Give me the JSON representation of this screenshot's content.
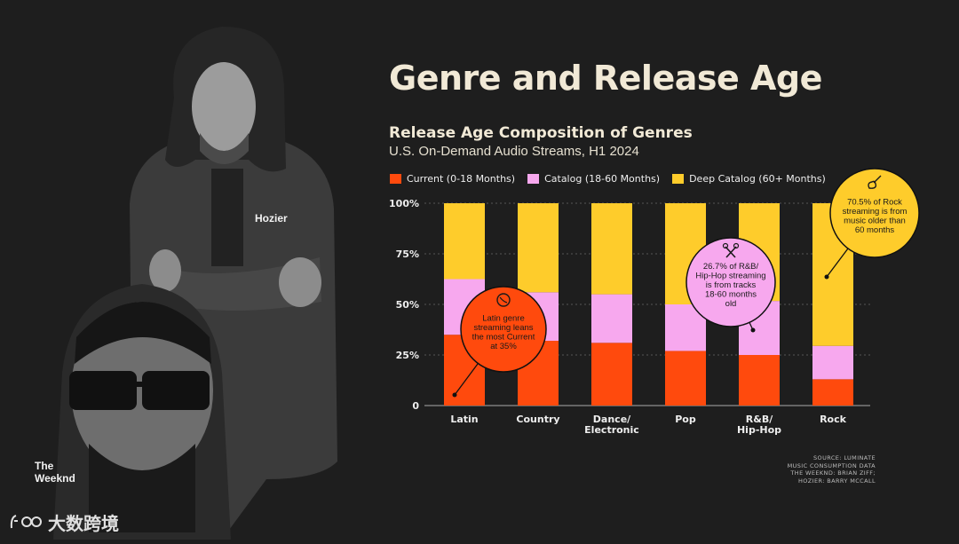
{
  "page": {
    "title": "Genre and Release Age"
  },
  "photos": {
    "hozier_label": "Hozier",
    "weeknd_label_line1": "The",
    "weeknd_label_line2": "Weeknd"
  },
  "watermark": {
    "text": "大数跨境"
  },
  "source": {
    "line1": "SOURCE: LUMINATE",
    "line2": "MUSIC CONSUMPTION DATA",
    "line3": "THE WEEKND: BRIAN ZIFF;",
    "line4": "HOZIER: BARRY MCCALL"
  },
  "colors": {
    "current": "#ff4a0d",
    "catalog": "#f7a8ee",
    "deep_catalog": "#fecc2b",
    "background": "#1e1e1e",
    "title": "#f1e9d6"
  },
  "chart_data": {
    "type": "bar",
    "stacked": true,
    "title": "Release Age Composition of Genres",
    "subtitle": "U.S. On-Demand Audio Streams, H1 2024",
    "categories": [
      "Latin",
      "Country",
      "Dance/\nElectronic",
      "Pop",
      "R&B/\nHip-Hop",
      "Rock"
    ],
    "series": [
      {
        "name": "Current (0-18 Months)",
        "color": "#ff4a0d",
        "values": [
          35,
          32,
          31,
          27,
          25,
          13
        ]
      },
      {
        "name": "Catalog (18-60 Months)",
        "color": "#f7a8ee",
        "values": [
          27.5,
          24,
          24,
          23,
          26.7,
          16.5
        ]
      },
      {
        "name": "Deep Catalog (60+ Months)",
        "color": "#fecc2b",
        "values": [
          37.5,
          44,
          45,
          50,
          48.3,
          70.5
        ]
      }
    ],
    "y_ticks": [
      "0",
      "25%",
      "50%",
      "75%",
      "100%"
    ],
    "ylim": [
      0,
      100
    ],
    "legend_position": "top-left",
    "grid": true,
    "annotations": [
      {
        "category": "Latin",
        "color": "#ff4a0d",
        "icon": "globe-icon",
        "lines": [
          "Latin genre",
          "streaming leans",
          "the most Current",
          "at 35%"
        ]
      },
      {
        "category": "R&B/\nHip-Hop",
        "color": "#f7a8ee",
        "icon": "microphones-icon",
        "lines": [
          "26.7% of R&B/",
          "Hip-Hop streaming",
          "is from tracks",
          "18-60 months",
          "old"
        ]
      },
      {
        "category": "Rock",
        "color": "#fecc2b",
        "icon": "guitar-icon",
        "lines": [
          "70.5% of Rock",
          "streaming is from",
          "music older than",
          "60 months"
        ]
      }
    ]
  }
}
